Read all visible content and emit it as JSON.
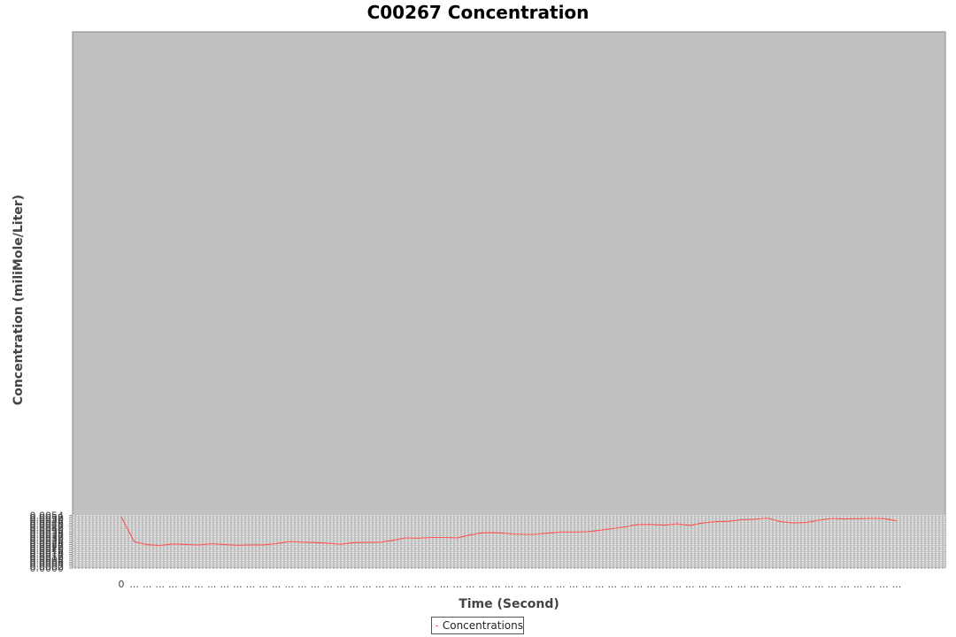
{
  "chart_data": {
    "type": "line",
    "title": "C00267 Concentration",
    "xlabel": "Time (Second)",
    "ylabel": "Concentration (miliMole/Liter)",
    "ylim": [
      0,
      0.0055
    ],
    "yticks": [
      "0.0000",
      "0.0002",
      "0.0004",
      "0.0006",
      "0.0008",
      "0.0010",
      "0.0012",
      "0.0014",
      "0.0016",
      "0.0018",
      "0.0020",
      "0.0022",
      "0.0024",
      "0.0026",
      "0.0028",
      "0.0030",
      "0.0032",
      "0.0034",
      "0.0036",
      "0.0038",
      "0.0040",
      "0.0042",
      "0.0044",
      "0.0046",
      "0.0048",
      "0.0050",
      "0.0052",
      "0.0054"
    ],
    "xtick_first": "0",
    "xtick_other": "...",
    "grid": true,
    "background": "#c0c0c0",
    "line_color": "#ff5555",
    "legend_position": "bottom-center",
    "series": [
      {
        "name": "Concentrations",
        "values": [
          0.00525,
          0.0027,
          0.00239,
          0.00231,
          0.00247,
          0.00242,
          0.00236,
          0.00249,
          0.0024,
          0.00234,
          0.00237,
          0.00237,
          0.00251,
          0.00271,
          0.00266,
          0.00262,
          0.00254,
          0.00244,
          0.00261,
          0.00265,
          0.00265,
          0.00284,
          0.00309,
          0.00306,
          0.00314,
          0.00314,
          0.0031,
          0.00339,
          0.00363,
          0.00365,
          0.00352,
          0.00345,
          0.00346,
          0.00358,
          0.0037,
          0.00369,
          0.00372,
          0.00387,
          0.00405,
          0.00423,
          0.00447,
          0.00448,
          0.0044,
          0.00454,
          0.00437,
          0.00463,
          0.00476,
          0.0048,
          0.00496,
          0.005,
          0.00514,
          0.00476,
          0.00464,
          0.00467,
          0.00492,
          0.00509,
          0.00504,
          0.00507,
          0.00509,
          0.00508,
          0.00484
        ]
      }
    ]
  }
}
